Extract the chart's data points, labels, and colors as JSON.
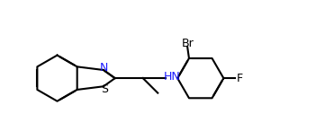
{
  "background_color": "#ffffff",
  "line_color": "#000000",
  "label_color": "#000000",
  "N_color": "#1a1aff",
  "S_color": "#000000",
  "figsize": [
    3.61,
    1.56
  ],
  "dpi": 100,
  "labels": {
    "N": "N",
    "S": "S",
    "HN": "HN",
    "Br": "Br",
    "F": "F"
  }
}
